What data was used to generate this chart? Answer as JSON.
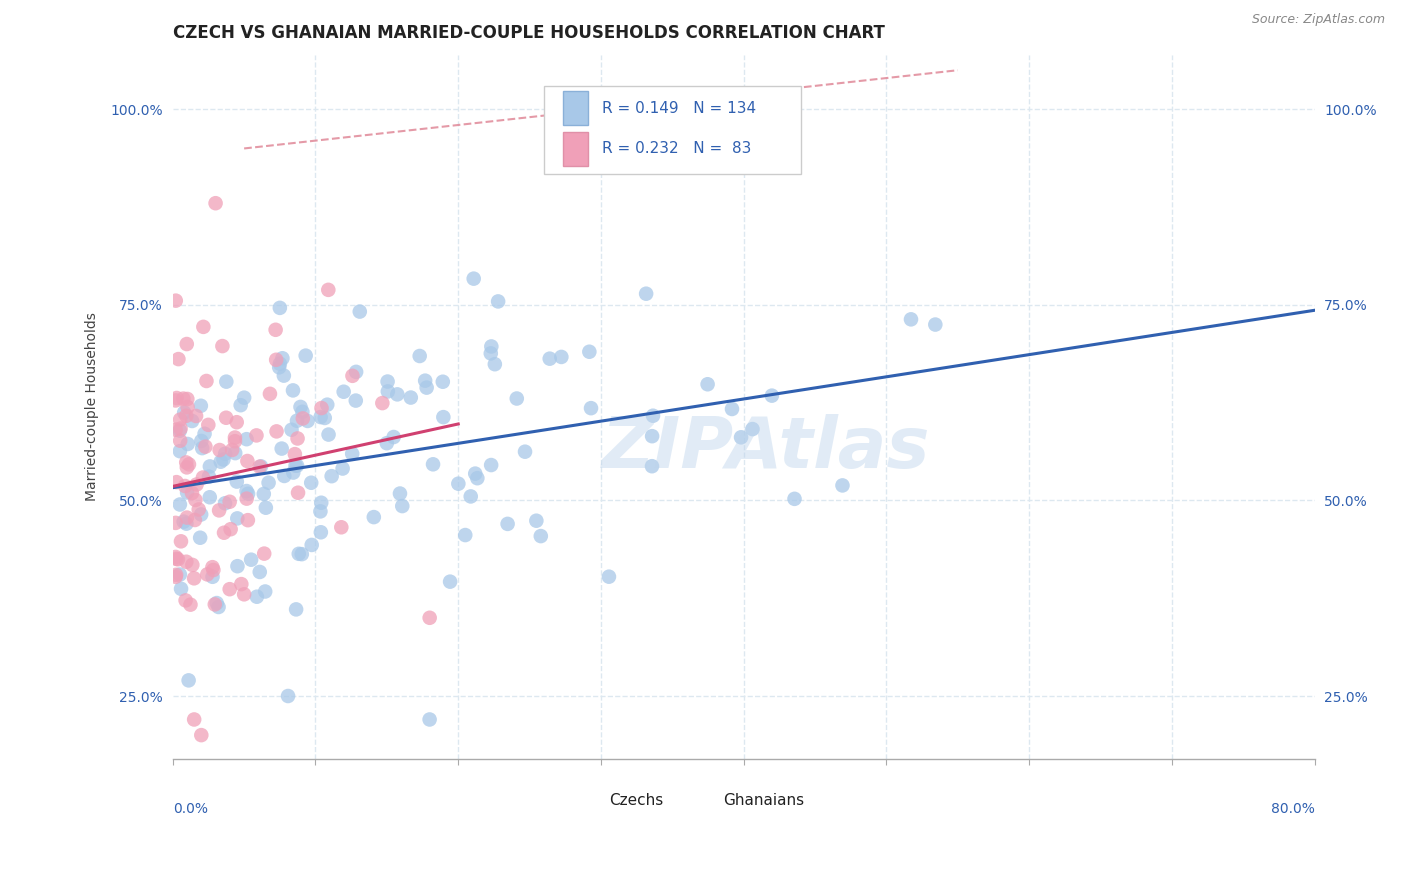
{
  "title": "CZECH VS GHANAIAN MARRIED-COUPLE HOUSEHOLDS CORRELATION CHART",
  "source": "Source: ZipAtlas.com",
  "ylabel": "Married-couple Households",
  "xlim": [
    0.0,
    80.0
  ],
  "ylim": [
    17.0,
    107.0
  ],
  "yticks": [
    25.0,
    50.0,
    75.0,
    100.0
  ],
  "ytick_labels": [
    "25.0%",
    "50.0%",
    "75.0%",
    "100.0%"
  ],
  "legend_R1": "R = 0.149",
  "legend_N1": "N = 134",
  "legend_R2": "R = 0.232",
  "legend_N2": "N =  83",
  "legend_label1": "Czechs",
  "legend_label2": "Ghanaians",
  "czech_color": "#a8c8e8",
  "ghanaian_color": "#f0a0b8",
  "czech_line_color": "#3060b0",
  "ghanaian_line_color": "#d04070",
  "ref_line_color": "#e08898",
  "background_color": "#ffffff",
  "grid_color": "#dde8f0",
  "watermark": "ZIPAtlas",
  "title_fontsize": 12,
  "axis_label_fontsize": 10,
  "tick_fontsize": 10,
  "czech_R": 0.149,
  "ghanaian_R": 0.232,
  "czech_N": 134,
  "ghanaian_N": 83
}
